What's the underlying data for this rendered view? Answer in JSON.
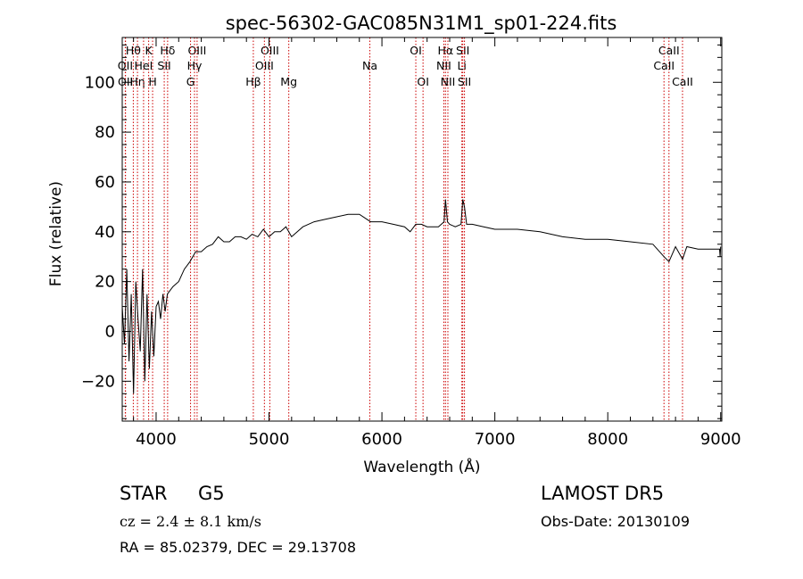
{
  "chart_data": {
    "type": "line",
    "title": "spec-56302-GAC085N31M1_sp01-224.fits",
    "xlabel": "Wavelength (Å)",
    "ylabel": "Flux (relative)",
    "xlim": [
      3700,
      9010
    ],
    "ylim": [
      -36,
      118
    ],
    "x_ticks": [
      4000,
      5000,
      6000,
      7000,
      8000,
      9000
    ],
    "y_ticks": [
      -20,
      0,
      20,
      40,
      60,
      80,
      100
    ],
    "grid": false,
    "line_color": "#000000",
    "marker_color": "#cc0000",
    "spectrum": {
      "x": [
        3700,
        3720,
        3740,
        3760,
        3780,
        3800,
        3820,
        3840,
        3860,
        3880,
        3900,
        3920,
        3940,
        3960,
        3980,
        4000,
        4020,
        4040,
        4060,
        4080,
        4100,
        4150,
        4200,
        4250,
        4300,
        4350,
        4400,
        4450,
        4500,
        4550,
        4600,
        4650,
        4700,
        4750,
        4800,
        4850,
        4900,
        4950,
        5000,
        5050,
        5100,
        5150,
        5200,
        5300,
        5400,
        5500,
        5600,
        5700,
        5800,
        5900,
        6000,
        6100,
        6200,
        6250,
        6300,
        6350,
        6400,
        6500,
        6550,
        6563,
        6580,
        6600,
        6650,
        6700,
        6716,
        6731,
        6750,
        6800,
        6900,
        7000,
        7200,
        7400,
        7600,
        7800,
        8000,
        8200,
        8400,
        8498,
        8542,
        8600,
        8662,
        8700,
        8800,
        8900,
        8990,
        8995,
        9000
      ],
      "y": [
        10,
        -5,
        25,
        -12,
        15,
        -25,
        20,
        5,
        -8,
        25,
        -20,
        15,
        -15,
        8,
        -10,
        10,
        12,
        5,
        15,
        8,
        15,
        18,
        20,
        25,
        28,
        32,
        32,
        34,
        35,
        38,
        36,
        36,
        38,
        38,
        37,
        39,
        38,
        41,
        38,
        40,
        40,
        42,
        38,
        42,
        44,
        45,
        46,
        47,
        47,
        44,
        44,
        43,
        42,
        40,
        43,
        43,
        42,
        42,
        44,
        53,
        44,
        43,
        42,
        43,
        53,
        50,
        43,
        43,
        42,
        41,
        41,
        40,
        38,
        37,
        37,
        36,
        35,
        30,
        28,
        34,
        29,
        34,
        33,
        33,
        33,
        30,
        34
      ]
    },
    "line_ids": [
      {
        "label": "Hθ",
        "wave": 3798,
        "row": 0
      },
      {
        "label": "OII",
        "wave": 3727,
        "row": 1
      },
      {
        "label": "OII",
        "wave": 3729,
        "row": 2
      },
      {
        "label": "Hη",
        "wave": 3835,
        "row": 2
      },
      {
        "label": "K",
        "wave": 3934,
        "row": 0
      },
      {
        "label": "HeI",
        "wave": 3889,
        "row": 1
      },
      {
        "label": "H",
        "wave": 3969,
        "row": 2
      },
      {
        "label": "Hδ",
        "wave": 4102,
        "row": 0
      },
      {
        "label": "SII",
        "wave": 4072,
        "row": 1
      },
      {
        "label": "OIII",
        "wave": 4363,
        "row": 0
      },
      {
        "label": "Hγ",
        "wave": 4340,
        "row": 1
      },
      {
        "label": "G",
        "wave": 4305,
        "row": 2
      },
      {
        "label": "OIII",
        "wave": 5007,
        "row": 0
      },
      {
        "label": "OIII",
        "wave": 4959,
        "row": 1
      },
      {
        "label": "Hβ",
        "wave": 4861,
        "row": 2
      },
      {
        "label": "Mg",
        "wave": 5175,
        "row": 2
      },
      {
        "label": "Na",
        "wave": 5893,
        "row": 1
      },
      {
        "label": "OI",
        "wave": 6300,
        "row": 0
      },
      {
        "label": "OI",
        "wave": 6364,
        "row": 2
      },
      {
        "label": "Hα",
        "wave": 6563,
        "row": 0
      },
      {
        "label": "NII",
        "wave": 6548,
        "row": 1
      },
      {
        "label": "NII",
        "wave": 6584,
        "row": 2
      },
      {
        "label": "SII",
        "wave": 6716,
        "row": 0
      },
      {
        "label": "Li",
        "wave": 6708,
        "row": 1
      },
      {
        "label": "SII",
        "wave": 6731,
        "row": 2
      },
      {
        "label": "CaII",
        "wave": 8542,
        "row": 0
      },
      {
        "label": "CaII",
        "wave": 8498,
        "row": 1
      },
      {
        "label": "CaII",
        "wave": 8662,
        "row": 2
      }
    ]
  },
  "info": {
    "obj_class": "STAR",
    "subclass": "G5",
    "survey": "LAMOST DR5",
    "cz": "cz = 2.4 ± 8.1 km/s",
    "obs_date": "Obs-Date: 20130109",
    "coords": "RA =  85.02379, DEC =  29.13708"
  }
}
